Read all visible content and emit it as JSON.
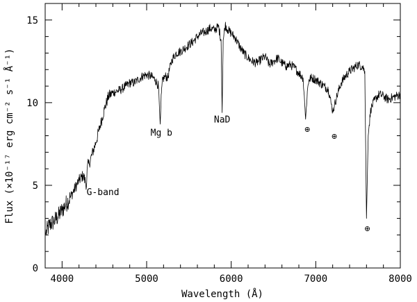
{
  "chart_data": {
    "type": "line",
    "title": "",
    "xlabel": "Wavelength (Å)",
    "ylabel": "Flux (×10⁻¹⁷ erg cm⁻² s⁻¹ Å⁻¹)",
    "xlim": [
      3800,
      8000
    ],
    "ylim": [
      0,
      16
    ],
    "x_ticks": [
      4000,
      5000,
      6000,
      7000,
      8000
    ],
    "y_ticks": [
      0,
      5,
      10,
      15
    ],
    "grid": false,
    "line_color": "#000000",
    "series": [
      {
        "x": [
          3800,
          3850,
          3900,
          3950,
          4000,
          4050,
          4100,
          4150,
          4200,
          4250,
          4290,
          4300,
          4320,
          4350,
          4400,
          4450,
          4500,
          4550,
          4600,
          4650,
          4700,
          4750,
          4800,
          4850,
          4900,
          4950,
          5000,
          5050,
          5100,
          5140,
          5160,
          5175,
          5190,
          5220,
          5250,
          5270,
          5300,
          5350,
          5400,
          5450,
          5500,
          5550,
          5600,
          5650,
          5700,
          5750,
          5800,
          5850,
          5880,
          5893,
          5905,
          5930,
          5960,
          6000,
          6050,
          6100,
          6150,
          6200,
          6250,
          6300,
          6350,
          6400,
          6450,
          6500,
          6550,
          6600,
          6650,
          6700,
          6750,
          6800,
          6850,
          6880,
          6900,
          6920,
          6950,
          7000,
          7050,
          7100,
          7150,
          7180,
          7200,
          7220,
          7250,
          7300,
          7350,
          7400,
          7450,
          7500,
          7550,
          7580,
          7600,
          7620,
          7650,
          7700,
          7750,
          7800,
          7850,
          7900,
          7950,
          8000
        ],
        "y": [
          2.0,
          2.6,
          2.8,
          3.1,
          3.5,
          3.9,
          4.3,
          4.8,
          5.3,
          5.6,
          5.0,
          6.2,
          6.3,
          6.8,
          7.6,
          8.6,
          9.6,
          10.4,
          10.6,
          10.7,
          10.8,
          11.0,
          11.2,
          11.2,
          11.4,
          11.6,
          11.7,
          11.6,
          11.4,
          11.0,
          8.7,
          10.6,
          11.4,
          11.6,
          11.5,
          12.0,
          12.6,
          13.0,
          13.1,
          13.3,
          13.5,
          13.7,
          14.0,
          14.2,
          14.3,
          14.5,
          14.4,
          14.6,
          13.8,
          9.4,
          13.8,
          14.7,
          14.4,
          14.2,
          13.9,
          13.4,
          13.0,
          12.7,
          12.5,
          12.4,
          12.6,
          12.8,
          12.3,
          12.5,
          12.7,
          12.4,
          12.2,
          12.3,
          12.1,
          11.8,
          11.5,
          9.0,
          10.7,
          11.4,
          11.5,
          11.4,
          11.2,
          11.0,
          10.8,
          10.0,
          9.5,
          9.8,
          10.4,
          11.2,
          11.6,
          11.9,
          12.1,
          12.3,
          12.2,
          11.9,
          3.0,
          8.0,
          9.6,
          10.2,
          10.5,
          10.4,
          10.2,
          10.3,
          10.4,
          10.5
        ]
      }
    ],
    "annotations": [
      {
        "text": "G-band",
        "x": 4290,
        "y": 4.4
      },
      {
        "text": "Mg b",
        "x": 5175,
        "y": 8.0
      },
      {
        "text": "NaD",
        "x": 5893,
        "y": 8.8
      },
      {
        "text": "⊕",
        "x": 6900,
        "y": 8.2
      },
      {
        "text": "⊕",
        "x": 7220,
        "y": 7.8
      },
      {
        "text": "⊕",
        "x": 7610,
        "y": 2.2
      }
    ]
  }
}
